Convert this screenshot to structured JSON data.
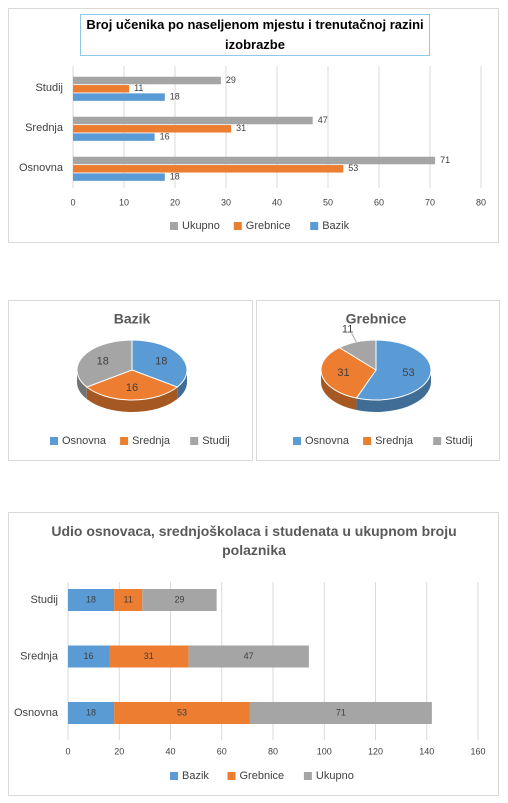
{
  "chart_data": [
    {
      "type": "bar",
      "orientation": "horizontal",
      "title": "Broj učenika po naseljenom mjestu i  trenutačnoj razini izobrazbe",
      "categories": [
        "Osnovna",
        "Srednja",
        "Studij"
      ],
      "series": [
        {
          "name": "Ukupno",
          "color": "#a5a5a5",
          "values": [
            71,
            47,
            29
          ]
        },
        {
          "name": "Grebnice",
          "color": "#ed7d31",
          "values": [
            53,
            31,
            11
          ]
        },
        {
          "name": "Bazik",
          "color": "#5b9bd5",
          "values": [
            18,
            16,
            18
          ]
        }
      ],
      "xlim": [
        0,
        80
      ],
      "xticks": [
        0,
        10,
        20,
        30,
        40,
        50,
        60,
        70,
        80
      ],
      "grid": true,
      "legend": "bottom"
    },
    {
      "type": "pie",
      "title": "Bazik",
      "categories": [
        "Osnovna",
        "Srednja",
        "Studij"
      ],
      "values": [
        18,
        16,
        18
      ],
      "colors": [
        "#5b9bd5",
        "#ed7d31",
        "#a5a5a5"
      ],
      "legend": "bottom"
    },
    {
      "type": "pie",
      "title": "Grebnice",
      "categories": [
        "Osnovna",
        "Srednja",
        "Studij"
      ],
      "values": [
        53,
        31,
        11
      ],
      "colors": [
        "#5b9bd5",
        "#ed7d31",
        "#a5a5a5"
      ],
      "legend": "bottom"
    },
    {
      "type": "stacked_bar",
      "orientation": "horizontal",
      "title": "Udio osnovaca, srednjoškolaca i studenata u ukupnom broju polaznika",
      "categories": [
        "Osnovna",
        "Srednja",
        "Studij"
      ],
      "series": [
        {
          "name": "Bazik",
          "color": "#5b9bd5",
          "values": [
            18,
            16,
            18
          ]
        },
        {
          "name": "Grebnice",
          "color": "#ed7d31",
          "values": [
            53,
            31,
            11
          ]
        },
        {
          "name": "Ukupno",
          "color": "#a5a5a5",
          "values": [
            71,
            47,
            29
          ]
        }
      ],
      "xlim": [
        0,
        160
      ],
      "xticks": [
        0,
        20,
        40,
        60,
        80,
        100,
        120,
        140,
        160
      ],
      "grid": true,
      "legend": "bottom"
    }
  ]
}
